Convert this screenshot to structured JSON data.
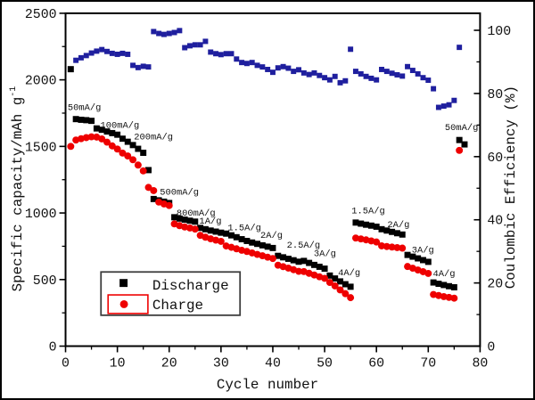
{
  "chart_data": {
    "type": "scatter",
    "xlabel": "Cycle number",
    "ylabel_left_main": "Specific capacity/mAh g",
    "ylabel_left_sup": "-1",
    "ylabel_right": "Coulombic Efficiency (%)",
    "xlim": [
      0,
      80
    ],
    "ylim_left": [
      0,
      2500
    ],
    "ylim_right": [
      0,
      100
    ],
    "x_ticks": [
      0,
      10,
      20,
      30,
      40,
      50,
      60,
      70,
      80
    ],
    "x_minor_step": 5,
    "y_left_ticks": [
      0,
      500,
      1000,
      1500,
      2000,
      2500
    ],
    "y_left_minor_step": 250,
    "y_right_ticks": [
      0,
      20,
      40,
      60,
      80,
      100
    ],
    "y_right_minor_step": 10,
    "grid": "off",
    "legend_position": "lower-left-inside",
    "colors": {
      "discharge": "#000000",
      "charge": "#ee0000",
      "efficiency": "#1f1f9e",
      "frame": "#000000"
    },
    "legend": [
      {
        "label": "Discharge",
        "marker": "square",
        "color": "#000000",
        "boxed": false
      },
      {
        "label": "Charge",
        "marker": "circle",
        "color": "#ee0000",
        "boxed": true
      }
    ],
    "series": [
      {
        "name": "Discharge",
        "axis": "left",
        "marker": "square",
        "values": [
          2080,
          1705,
          1700,
          1697,
          1692,
          1635,
          1625,
          1612,
          1600,
          1588,
          1558,
          1535,
          1510,
          1482,
          1452,
          1322,
          1105,
          1095,
          1085,
          1075,
          968,
          958,
          950,
          942,
          935,
          888,
          878,
          868,
          860,
          852,
          845,
          832,
          818,
          803,
          790,
          778,
          768,
          757,
          747,
          737,
          678,
          667,
          656,
          645,
          634,
          640,
          625,
          610,
          596,
          582,
          530,
          508,
          486,
          465,
          446,
          928,
          920,
          912,
          905,
          897,
          878,
          868,
          858,
          848,
          838,
          685,
          672,
          659,
          646,
          633,
          478,
          468,
          459,
          450,
          442,
          1548,
          1515
        ]
      },
      {
        "name": "Charge",
        "axis": "left",
        "marker": "circle",
        "values": [
          1500,
          1548,
          1558,
          1566,
          1572,
          1570,
          1556,
          1532,
          1504,
          1480,
          1450,
          1428,
          1400,
          1360,
          1316,
          1192,
          1168,
          1082,
          1068,
          1056,
          918,
          905,
          895,
          887,
          879,
          832,
          818,
          806,
          796,
          787,
          752,
          742,
          731,
          720,
          711,
          700,
          689,
          679,
          668,
          658,
          608,
          597,
          586,
          574,
          562,
          560,
          547,
          534,
          521,
          509,
          478,
          452,
          422,
          394,
          364,
          812,
          805,
          798,
          790,
          782,
          753,
          748,
          744,
          740,
          736,
          598,
          585,
          572,
          559,
          546,
          388,
          380,
          372,
          366,
          360,
          1470,
          null
        ]
      },
      {
        "name": "Coulombic efficiency",
        "axis": "right",
        "marker": "square-small",
        "values": [
          null,
          90.5,
          91.3,
          92.0,
          92.8,
          93.4,
          93.9,
          93.3,
          92.7,
          92.4,
          92.7,
          92.4,
          88.9,
          88.2,
          88.6,
          88.4,
          99.6,
          99.0,
          98.7,
          99.0,
          99.3,
          99.9,
          94.5,
          95.1,
          95.4,
          95.4,
          96.5,
          93.1,
          92.6,
          92.3,
          92.6,
          92.6,
          90.9,
          89.8,
          89.5,
          89.8,
          88.9,
          88.4,
          87.6,
          86.7,
          88.1,
          88.5,
          88.0,
          87.0,
          87.5,
          86.5,
          86.0,
          86.5,
          85.7,
          85.0,
          84.3,
          85.4,
          83.4,
          84.0,
          94.0,
          87.0,
          86.2,
          85.4,
          84.8,
          84.3,
          87.6,
          87.0,
          86.4,
          85.9,
          85.5,
          88.5,
          87.3,
          86.2,
          85.0,
          84.2,
          81.5,
          75.6,
          76.0,
          76.4,
          77.8,
          94.6,
          null
        ]
      }
    ],
    "annotations": [
      {
        "text": "50mA/g",
        "x": 0.4,
        "y": 1800
      },
      {
        "text": "100mA/g",
        "x": 6.7,
        "y": 1665
      },
      {
        "text": "200mA/g",
        "x": 13.2,
        "y": 1580
      },
      {
        "text": "500mA/g",
        "x": 18.2,
        "y": 1165
      },
      {
        "text": "800mA/g",
        "x": 21.4,
        "y": 1008
      },
      {
        "text": "1A/g",
        "x": 25.8,
        "y": 948
      },
      {
        "text": "1.5A/g",
        "x": 31.3,
        "y": 897
      },
      {
        "text": "2A/g",
        "x": 37.6,
        "y": 840
      },
      {
        "text": "2.5A/g",
        "x": 42.7,
        "y": 765
      },
      {
        "text": "3A/g",
        "x": 47.9,
        "y": 702
      },
      {
        "text": "4A/g",
        "x": 52.6,
        "y": 560
      },
      {
        "text": "1.5A/g",
        "x": 55.2,
        "y": 1023
      },
      {
        "text": "2A/g",
        "x": 62.1,
        "y": 920
      },
      {
        "text": "3A/g",
        "x": 66.8,
        "y": 728
      },
      {
        "text": "4A/g",
        "x": 70.9,
        "y": 552
      },
      {
        "text": "50mA/g",
        "x": 73.2,
        "y": 1650
      }
    ]
  }
}
